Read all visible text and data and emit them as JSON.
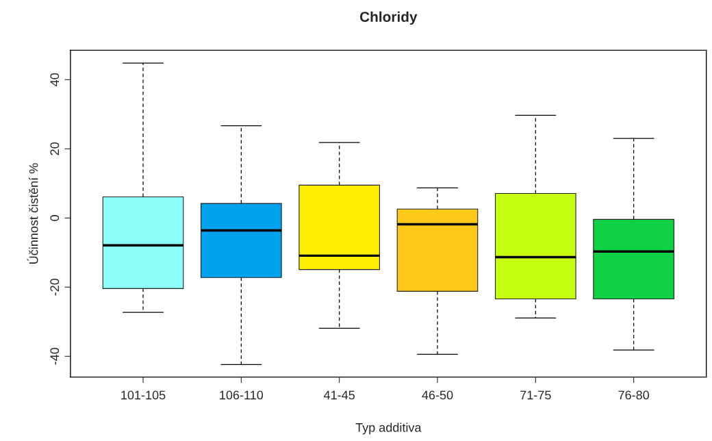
{
  "chart_data": {
    "type": "box",
    "title": "Chloridy",
    "xlabel": "Typ additiva",
    "ylabel": "Účinnost čistění %",
    "categories": [
      "101-105",
      "106-110",
      "41-45",
      "46-50",
      "71-75",
      "76-80"
    ],
    "boxes": [
      {
        "low": -27.3,
        "q1": -20.4,
        "median": -7.9,
        "q3": 6.1,
        "high": 44.8
      },
      {
        "low": -42.4,
        "q1": -17.2,
        "median": -3.6,
        "q3": 4.2,
        "high": 26.7
      },
      {
        "low": -31.9,
        "q1": -14.9,
        "median": -10.9,
        "q3": 9.5,
        "high": 21.8
      },
      {
        "low": -39.4,
        "q1": -21.2,
        "median": -1.8,
        "q3": 2.6,
        "high": 8.7
      },
      {
        "low": -28.9,
        "q1": -23.4,
        "median": -11.3,
        "q3": 7.1,
        "high": 29.7
      },
      {
        "low": -38.2,
        "q1": -23.4,
        "median": -9.7,
        "q3": -0.4,
        "high": 23.0
      }
    ],
    "colors": [
      "#8cfff8",
      "#00a2ee",
      "#ffee00",
      "#ffc919",
      "#c6ff11",
      "#10d146"
    ],
    "ylim": [
      -46,
      48.5
    ],
    "yticks": [
      -40,
      -20,
      0,
      20,
      40
    ],
    "grid": false,
    "legend": false
  }
}
